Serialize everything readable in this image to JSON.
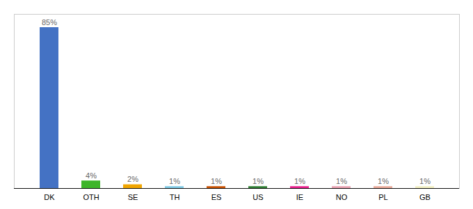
{
  "chart_data": {
    "type": "bar",
    "categories": [
      "DK",
      "OTH",
      "SE",
      "TH",
      "ES",
      "US",
      "IE",
      "NO",
      "PL",
      "GB"
    ],
    "values": [
      85,
      4,
      2,
      1,
      1,
      1,
      1,
      1,
      1,
      1
    ],
    "value_labels": [
      "85%",
      "4%",
      "2%",
      "1%",
      "1%",
      "1%",
      "1%",
      "1%",
      "1%",
      "1%"
    ],
    "colors": [
      "#4472c4",
      "#3db529",
      "#f0a500",
      "#7ec8e3",
      "#c85000",
      "#2e7d32",
      "#e91e8c",
      "#e8a0b0",
      "#e8a898",
      "#f0edc0"
    ],
    "ylim": [
      0,
      92
    ],
    "data_labels": true,
    "tick_labels": "x",
    "grid": false
  }
}
